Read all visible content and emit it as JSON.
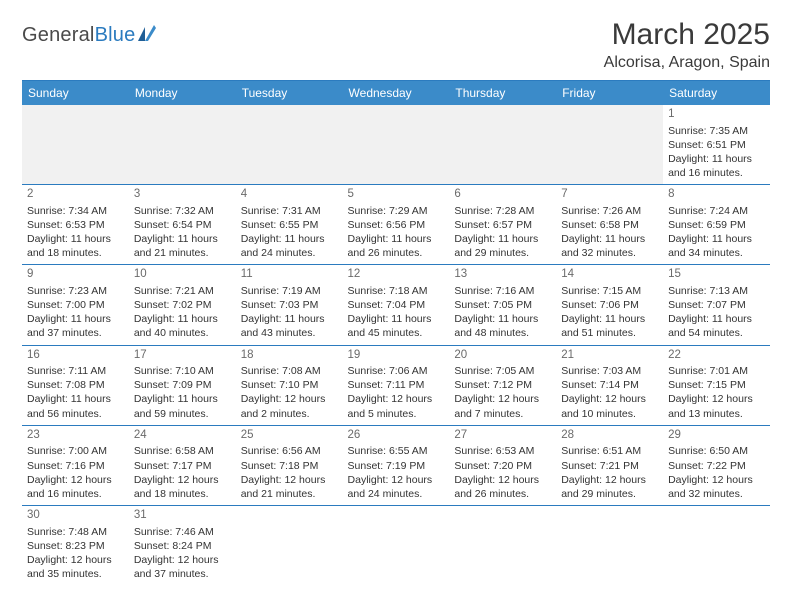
{
  "logo": {
    "part1": "General",
    "part2": "Blue"
  },
  "title": "March 2025",
  "location": "Alcorisa, Aragon, Spain",
  "weekdays": [
    "Sunday",
    "Monday",
    "Tuesday",
    "Wednesday",
    "Thursday",
    "Friday",
    "Saturday"
  ],
  "colors": {
    "header_bg": "#3b8bc9",
    "header_text": "#ffffff",
    "border": "#2b7bbf",
    "empty_bg": "#f1f1f1"
  },
  "days": {
    "1": {
      "sunrise": "7:35 AM",
      "sunset": "6:51 PM",
      "dl_h": 11,
      "dl_m": 16
    },
    "2": {
      "sunrise": "7:34 AM",
      "sunset": "6:53 PM",
      "dl_h": 11,
      "dl_m": 18
    },
    "3": {
      "sunrise": "7:32 AM",
      "sunset": "6:54 PM",
      "dl_h": 11,
      "dl_m": 21
    },
    "4": {
      "sunrise": "7:31 AM",
      "sunset": "6:55 PM",
      "dl_h": 11,
      "dl_m": 24
    },
    "5": {
      "sunrise": "7:29 AM",
      "sunset": "6:56 PM",
      "dl_h": 11,
      "dl_m": 26
    },
    "6": {
      "sunrise": "7:28 AM",
      "sunset": "6:57 PM",
      "dl_h": 11,
      "dl_m": 29
    },
    "7": {
      "sunrise": "7:26 AM",
      "sunset": "6:58 PM",
      "dl_h": 11,
      "dl_m": 32
    },
    "8": {
      "sunrise": "7:24 AM",
      "sunset": "6:59 PM",
      "dl_h": 11,
      "dl_m": 34
    },
    "9": {
      "sunrise": "7:23 AM",
      "sunset": "7:00 PM",
      "dl_h": 11,
      "dl_m": 37
    },
    "10": {
      "sunrise": "7:21 AM",
      "sunset": "7:02 PM",
      "dl_h": 11,
      "dl_m": 40
    },
    "11": {
      "sunrise": "7:19 AM",
      "sunset": "7:03 PM",
      "dl_h": 11,
      "dl_m": 43
    },
    "12": {
      "sunrise": "7:18 AM",
      "sunset": "7:04 PM",
      "dl_h": 11,
      "dl_m": 45
    },
    "13": {
      "sunrise": "7:16 AM",
      "sunset": "7:05 PM",
      "dl_h": 11,
      "dl_m": 48
    },
    "14": {
      "sunrise": "7:15 AM",
      "sunset": "7:06 PM",
      "dl_h": 11,
      "dl_m": 51
    },
    "15": {
      "sunrise": "7:13 AM",
      "sunset": "7:07 PM",
      "dl_h": 11,
      "dl_m": 54
    },
    "16": {
      "sunrise": "7:11 AM",
      "sunset": "7:08 PM",
      "dl_h": 11,
      "dl_m": 56
    },
    "17": {
      "sunrise": "7:10 AM",
      "sunset": "7:09 PM",
      "dl_h": 11,
      "dl_m": 59
    },
    "18": {
      "sunrise": "7:08 AM",
      "sunset": "7:10 PM",
      "dl_h": 12,
      "dl_m": 2
    },
    "19": {
      "sunrise": "7:06 AM",
      "sunset": "7:11 PM",
      "dl_h": 12,
      "dl_m": 5
    },
    "20": {
      "sunrise": "7:05 AM",
      "sunset": "7:12 PM",
      "dl_h": 12,
      "dl_m": 7
    },
    "21": {
      "sunrise": "7:03 AM",
      "sunset": "7:14 PM",
      "dl_h": 12,
      "dl_m": 10
    },
    "22": {
      "sunrise": "7:01 AM",
      "sunset": "7:15 PM",
      "dl_h": 12,
      "dl_m": 13
    },
    "23": {
      "sunrise": "7:00 AM",
      "sunset": "7:16 PM",
      "dl_h": 12,
      "dl_m": 16
    },
    "24": {
      "sunrise": "6:58 AM",
      "sunset": "7:17 PM",
      "dl_h": 12,
      "dl_m": 18
    },
    "25": {
      "sunrise": "6:56 AM",
      "sunset": "7:18 PM",
      "dl_h": 12,
      "dl_m": 21
    },
    "26": {
      "sunrise": "6:55 AM",
      "sunset": "7:19 PM",
      "dl_h": 12,
      "dl_m": 24
    },
    "27": {
      "sunrise": "6:53 AM",
      "sunset": "7:20 PM",
      "dl_h": 12,
      "dl_m": 26
    },
    "28": {
      "sunrise": "6:51 AM",
      "sunset": "7:21 PM",
      "dl_h": 12,
      "dl_m": 29
    },
    "29": {
      "sunrise": "6:50 AM",
      "sunset": "7:22 PM",
      "dl_h": 12,
      "dl_m": 32
    },
    "30": {
      "sunrise": "7:48 AM",
      "sunset": "8:23 PM",
      "dl_h": 12,
      "dl_m": 35
    },
    "31": {
      "sunrise": "7:46 AM",
      "sunset": "8:24 PM",
      "dl_h": 12,
      "dl_m": 37
    }
  },
  "layout": [
    [
      null,
      null,
      null,
      null,
      null,
      null,
      "1"
    ],
    [
      "2",
      "3",
      "4",
      "5",
      "6",
      "7",
      "8"
    ],
    [
      "9",
      "10",
      "11",
      "12",
      "13",
      "14",
      "15"
    ],
    [
      "16",
      "17",
      "18",
      "19",
      "20",
      "21",
      "22"
    ],
    [
      "23",
      "24",
      "25",
      "26",
      "27",
      "28",
      "29"
    ],
    [
      "30",
      "31",
      null,
      null,
      null,
      null,
      null
    ]
  ]
}
